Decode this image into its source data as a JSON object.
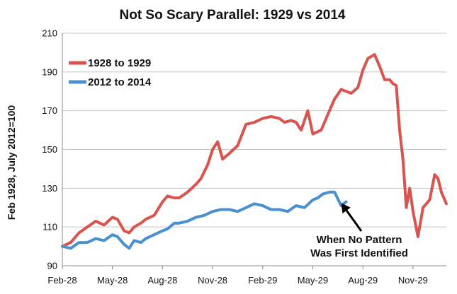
{
  "chart_data": {
    "type": "line",
    "title": "Not So Scary Parallel: 1929 vs 2014",
    "ylabel": "Feb 1928, July 2012=100",
    "xlabel": "",
    "ylim": [
      90,
      210
    ],
    "yticks": [
      90,
      110,
      130,
      150,
      170,
      190,
      210
    ],
    "xtick_labels": [
      "Feb-28",
      "May-28",
      "Aug-28",
      "Nov-28",
      "Feb-29",
      "May-29",
      "Aug-29",
      "Nov-29"
    ],
    "x_axis_months": [
      0,
      3,
      6,
      9,
      12,
      15,
      18,
      21
    ],
    "xlim_months": [
      0,
      23
    ],
    "grid": "horizontal",
    "legend_position": "top-left",
    "colors": {
      "series1": "#d9534f",
      "series2": "#4a90d0"
    },
    "series": [
      {
        "name": "1928 to 1929",
        "x_months": [
          0,
          0.5,
          1,
          1.5,
          2,
          2.5,
          3,
          3.3,
          3.7,
          4,
          4.3,
          4.7,
          5,
          5.5,
          6,
          6.3,
          6.7,
          7,
          7.5,
          8,
          8.3,
          8.7,
          9,
          9.3,
          9.6,
          10,
          10.5,
          11,
          11.5,
          12,
          12.5,
          13,
          13.3,
          13.7,
          14,
          14.3,
          14.7,
          15,
          15.5,
          16,
          16.3,
          16.7,
          17,
          17.3,
          17.7,
          18,
          18.3,
          18.7,
          19,
          19.3,
          19.6,
          19.8,
          20,
          20.2,
          20.4,
          20.6,
          20.8,
          21,
          21.3,
          21.6,
          22,
          22.3,
          22.5,
          22.7,
          23
        ],
        "values": [
          100,
          102,
          107,
          110,
          113,
          111,
          115,
          114,
          108,
          107,
          110,
          112,
          114,
          116,
          123,
          126,
          125,
          125,
          128,
          132,
          135,
          142,
          150,
          154,
          145,
          148,
          152,
          163,
          164,
          166,
          167,
          166,
          164,
          165,
          164,
          160,
          170,
          158,
          160,
          170,
          176,
          181,
          180,
          179,
          182,
          191,
          197,
          199,
          193,
          186,
          186,
          184,
          183,
          160,
          145,
          120,
          130,
          118,
          105,
          120,
          124,
          137,
          135,
          128,
          122
        ]
      },
      {
        "name": "2012 to 2014",
        "x_months": [
          0,
          0.5,
          1,
          1.5,
          2,
          2.5,
          3,
          3.3,
          3.7,
          4,
          4.3,
          4.7,
          5,
          5.5,
          6,
          6.3,
          6.7,
          7,
          7.5,
          8,
          8.5,
          9,
          9.5,
          10,
          10.5,
          11,
          11.5,
          12,
          12.5,
          13,
          13.5,
          14,
          14.5,
          15,
          15.3,
          15.6,
          16,
          16.3,
          16.7,
          17
        ],
        "values": [
          100,
          99,
          102,
          102,
          104,
          103,
          106,
          105,
          101,
          99,
          103,
          102,
          104,
          106,
          108,
          109,
          112,
          112,
          113,
          115,
          116,
          118,
          119,
          119,
          118,
          120,
          122,
          121,
          119,
          119,
          118,
          121,
          120,
          124,
          125,
          127,
          128,
          128,
          121,
          123
        ]
      }
    ],
    "annotation": {
      "lines": [
        "When No Pattern",
        "Was First Identified"
      ],
      "points_to_x_month": 16.7,
      "points_to_value": 126
    }
  }
}
